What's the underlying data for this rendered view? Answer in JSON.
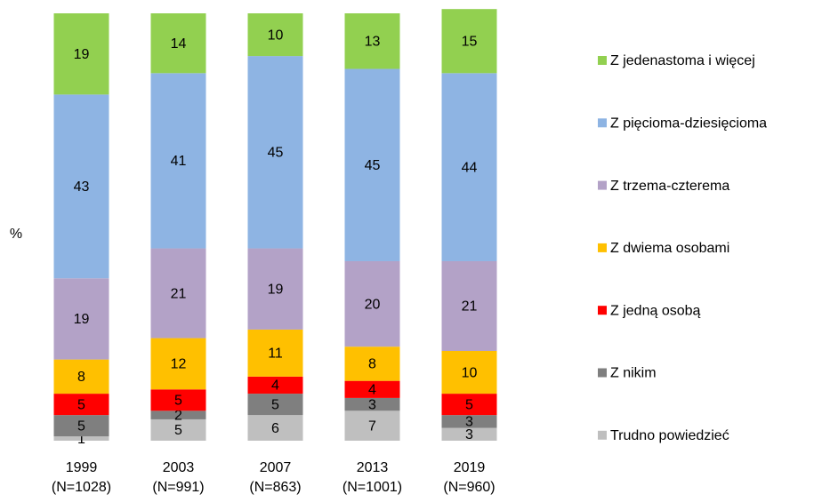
{
  "chart_data": {
    "type": "stacked_bar",
    "y_label": "%",
    "categories": [
      "1999",
      "2003",
      "2007",
      "2013",
      "2019"
    ],
    "category_notes": [
      "(N=1028)",
      "(N=991)",
      "(N=863)",
      "(N=1001)",
      "(N=960)"
    ],
    "ylim": [
      0,
      100
    ],
    "legend": "right",
    "series": [
      {
        "name": "Trudno powiedzieć",
        "color": "#bfbfbf",
        "values": [
          1,
          5,
          6,
          7,
          3
        ]
      },
      {
        "name": "Z nikim",
        "color": "#7f7f7f",
        "values": [
          5,
          2,
          5,
          3,
          3
        ]
      },
      {
        "name": "Z jedną osobą",
        "color": "#ff0000",
        "values": [
          5,
          5,
          4,
          4,
          5
        ]
      },
      {
        "name": "Z dwiema osobami",
        "color": "#ffc000",
        "values": [
          8,
          12,
          11,
          8,
          10
        ]
      },
      {
        "name": "Z trzema-czterema",
        "color": "#b3a2c7",
        "values": [
          19,
          21,
          19,
          20,
          21
        ]
      },
      {
        "name": "Z pięcioma-dziesięcioma",
        "color": "#8eb4e3",
        "values": [
          43,
          41,
          45,
          45,
          44
        ]
      },
      {
        "name": "Z jedenastoma i więcej",
        "color": "#92d050",
        "values": [
          19,
          14,
          10,
          13,
          15
        ]
      }
    ]
  }
}
